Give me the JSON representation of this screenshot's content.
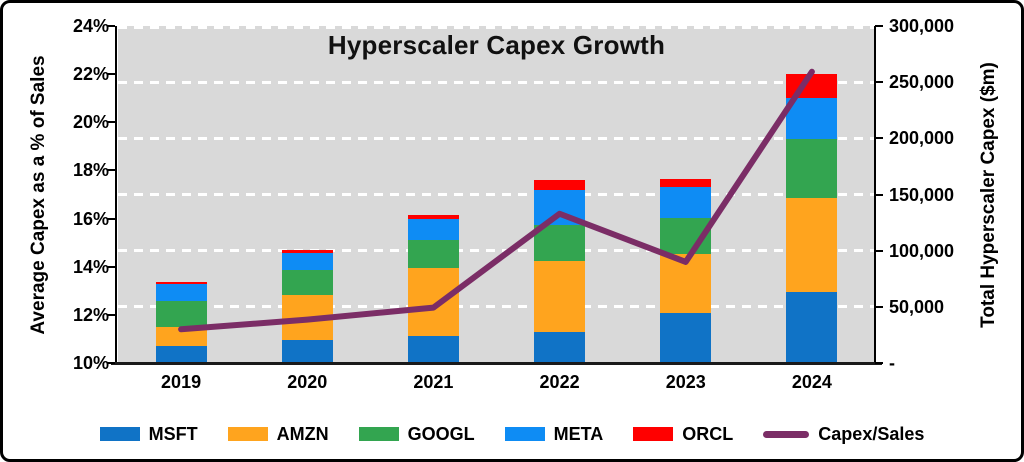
{
  "chart_data": {
    "type": "combo-stacked-bar-line",
    "title": "Hyperscaler Capex Growth",
    "categories": [
      "2019",
      "2020",
      "2021",
      "2022",
      "2023",
      "2024"
    ],
    "series": [
      {
        "name": "MSFT",
        "color": "#1073C6",
        "axis": "right",
        "values": [
          15000,
          20500,
          24000,
          27500,
          44500,
          63500
        ]
      },
      {
        "name": "AMZN",
        "color": "#FFA41E",
        "axis": "right",
        "values": [
          17000,
          40000,
          61000,
          63500,
          52500,
          83000
        ]
      },
      {
        "name": "GOOGL",
        "color": "#33A550",
        "axis": "right",
        "values": [
          23500,
          22500,
          24500,
          31500,
          32000,
          52500
        ]
      },
      {
        "name": "META",
        "color": "#0E8CF4",
        "axis": "right",
        "values": [
          15000,
          15000,
          19000,
          31500,
          27500,
          37000
        ]
      },
      {
        "name": "ORCL",
        "color": "#FF0000",
        "axis": "right",
        "values": [
          1700,
          2500,
          3500,
          9000,
          7000,
          21500
        ]
      }
    ],
    "line_series": {
      "name": "Capex/Sales",
      "color": "#7B2D66",
      "axis": "left",
      "values_pct": [
        11.4,
        11.8,
        12.3,
        16.2,
        14.2,
        22.1
      ]
    },
    "left_axis": {
      "label": "Average Capex as a % of Sales",
      "min": 10,
      "max": 24,
      "ticks": [
        {
          "label": "24%",
          "value": 24
        },
        {
          "label": "22%",
          "value": 22
        },
        {
          "label": "20%",
          "value": 20
        },
        {
          "label": "18%",
          "value": 18
        },
        {
          "label": "16%",
          "value": 16
        },
        {
          "label": "14%",
          "value": 14
        },
        {
          "label": "12%",
          "value": 12
        },
        {
          "label": "10%",
          "value": 10
        }
      ]
    },
    "right_axis": {
      "label": "Total Hyperscaler Capex ($m)",
      "min": 0,
      "max": 300000,
      "ticks": [
        {
          "label": "300,000",
          "value": 300000
        },
        {
          "label": "250,000",
          "value": 250000
        },
        {
          "label": "200,000",
          "value": 200000
        },
        {
          "label": "150,000",
          "value": 150000
        },
        {
          "label": "100,000",
          "value": 100000
        },
        {
          "label": "50,000",
          "value": 50000
        },
        {
          "label": "-",
          "value": 0
        }
      ]
    },
    "grid_values": [
      300000,
      250000,
      200000,
      150000,
      100000,
      50000
    ],
    "colors": {
      "plot_background": "#D9D9D9",
      "gridline": "#FFFFFF",
      "axis": "#000000"
    },
    "legend_position": "bottom"
  }
}
